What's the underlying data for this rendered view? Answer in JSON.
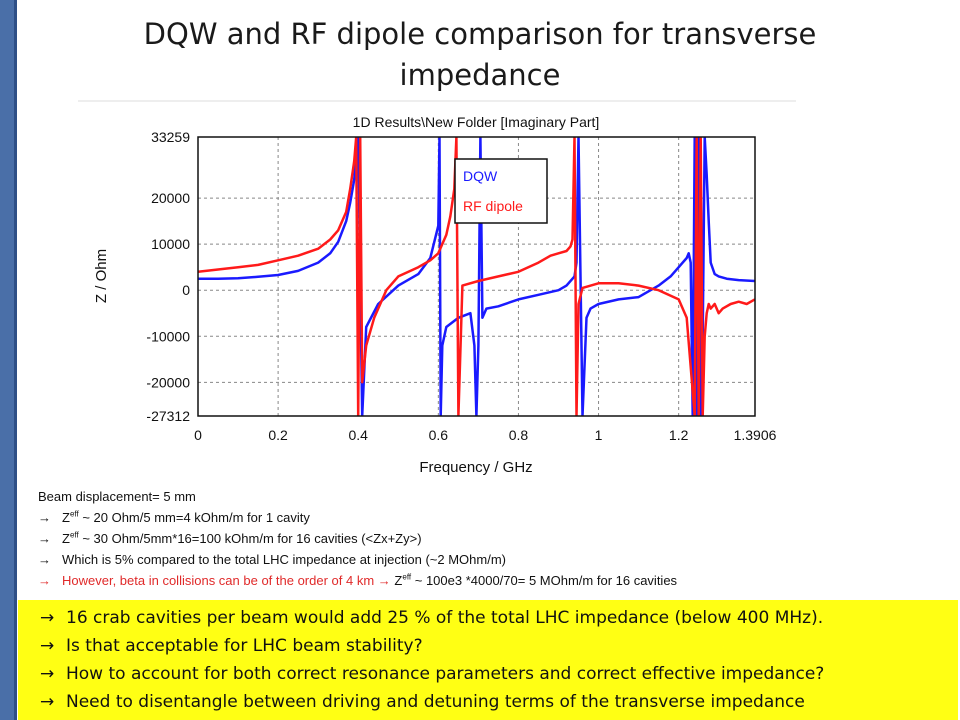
{
  "slide": {
    "title_line1": "DQW and RF dipole comparison for transverse",
    "title_line2": "impedance"
  },
  "chart_data": {
    "type": "line",
    "title": "1D Results\\New Folder [Imaginary Part]",
    "xlabel": "Frequency / GHz",
    "ylabel": "Z / Ohm",
    "xlim": [
      0,
      1.3906
    ],
    "ylim": [
      -27312,
      33259
    ],
    "x_ticks": [
      "0",
      "0.2",
      "0.4",
      "0.6",
      "0.8",
      "1",
      "1.2",
      "1.3906"
    ],
    "x_tick_values": [
      0,
      0.2,
      0.4,
      0.6,
      0.8,
      1,
      1.2,
      1.3906
    ],
    "y_ticks": [
      "33259",
      "20000",
      "10000",
      "0",
      "-10000",
      "-20000",
      "-27312"
    ],
    "y_tick_values": [
      33259,
      20000,
      10000,
      0,
      -10000,
      -20000,
      -27312
    ],
    "grid": true,
    "legend_position": "top-right",
    "series": [
      {
        "name": "DQW",
        "color": "#1a1aff",
        "x": [
          0.0,
          0.05,
          0.1,
          0.15,
          0.2,
          0.25,
          0.3,
          0.33,
          0.35,
          0.37,
          0.38,
          0.39,
          0.395,
          0.4,
          0.41,
          0.42,
          0.45,
          0.5,
          0.55,
          0.58,
          0.6,
          0.603,
          0.606,
          0.61,
          0.62,
          0.65,
          0.68,
          0.69,
          0.695,
          0.7,
          0.705,
          0.71,
          0.72,
          0.75,
          0.8,
          0.85,
          0.9,
          0.92,
          0.94,
          0.945,
          0.95,
          0.96,
          0.97,
          0.98,
          1.0,
          1.05,
          1.1,
          1.15,
          1.18,
          1.2,
          1.21,
          1.22,
          1.225,
          1.23,
          1.235,
          1.24,
          1.245,
          1.25,
          1.255,
          1.26,
          1.265,
          1.27,
          1.275,
          1.28,
          1.29,
          1.3,
          1.32,
          1.35,
          1.39
        ],
        "y": [
          2500,
          2500,
          2600,
          2900,
          3300,
          4200,
          6000,
          8000,
          10500,
          15000,
          19000,
          24000,
          29000,
          33259,
          -27312,
          -8000,
          -3000,
          1000,
          3500,
          7000,
          14000,
          33259,
          -27312,
          -12000,
          -8000,
          -6000,
          -5000,
          -12000,
          -27312,
          -12000,
          33259,
          -6000,
          -4000,
          -3500,
          -2000,
          -1000,
          0,
          1000,
          3000,
          6000,
          33259,
          -27312,
          -6000,
          -4000,
          -3000,
          -2000,
          -1500,
          1000,
          3000,
          5000,
          6000,
          7000,
          8000,
          6000,
          -27312,
          33259,
          -27312,
          33259,
          -27312,
          -10000,
          33259,
          25000,
          15000,
          6000,
          3500,
          3000,
          2500,
          2200,
          2000
        ]
      },
      {
        "name": "RF dipole",
        "color": "#ff1a1a",
        "x": [
          0.0,
          0.05,
          0.1,
          0.15,
          0.2,
          0.25,
          0.3,
          0.33,
          0.35,
          0.37,
          0.38,
          0.39,
          0.395,
          0.4,
          0.405,
          0.41,
          0.42,
          0.44,
          0.47,
          0.5,
          0.55,
          0.58,
          0.6,
          0.62,
          0.63,
          0.64,
          0.645,
          0.65,
          0.66,
          0.7,
          0.75,
          0.8,
          0.85,
          0.88,
          0.9,
          0.92,
          0.93,
          0.935,
          0.94,
          0.945,
          0.95,
          0.96,
          1.0,
          1.05,
          1.1,
          1.15,
          1.2,
          1.22,
          1.24,
          1.245,
          1.25,
          1.255,
          1.26,
          1.265,
          1.27,
          1.275,
          1.28,
          1.29,
          1.3,
          1.31,
          1.33,
          1.35,
          1.37,
          1.39
        ],
        "y": [
          4000,
          4500,
          5000,
          5500,
          6500,
          7500,
          9000,
          11000,
          13000,
          17000,
          22000,
          28000,
          33259,
          -27312,
          33259,
          -20000,
          -12000,
          -6000,
          0,
          3000,
          5000,
          6500,
          8000,
          12000,
          16000,
          22000,
          33259,
          -27312,
          1000,
          2000,
          3000,
          4000,
          6000,
          7500,
          8000,
          8500,
          9500,
          11000,
          33259,
          -27312,
          -3000,
          500,
          1500,
          1500,
          1000,
          0,
          -2000,
          -6000,
          -27312,
          33259,
          -27312,
          33259,
          -27312,
          -10000,
          -5000,
          -3000,
          -4000,
          -3000,
          -5000,
          -4000,
          -3000,
          -2500,
          -3000,
          -2000
        ]
      }
    ]
  },
  "notes": {
    "line1": "Beam displacement= 5 mm",
    "line2_pre": "Z",
    "line2_sup": "eff",
    "line2_post": " ~ 20 Ohm/5 mm=4 kOhm/m for 1 cavity",
    "line3_pre": "Z",
    "line3_sup": "eff",
    "line3_post": " ~ 30 Ohm/5mm*16=100 kOhm/m for 16 cavities (<Zx+Zy>)",
    "line4": "Which is 5% compared to the total LHC impedance at injection (~2 MOhm/m)",
    "line5_a": "However, beta in collisions can be of the order of 4 km",
    "line5_b": "Z",
    "line5_sup": "eff",
    "line5_c": " ~ 100e3 *4000/70= 5 MOhm/m for 16 cavities"
  },
  "summary": {
    "lines": [
      "16 crab cavities per beam would add 25 % of the total LHC impedance (below 400 MHz).",
      "Is that acceptable for LHC beam stability?",
      "How to account for both correct resonance parameters and correct effective impedance?",
      "Need to disentangle between driving and detuning terms of the transverse impedance"
    ]
  },
  "glyphs": {
    "arrow": "→"
  },
  "colors": {
    "dqw": "#1a1aff",
    "rf_dipole": "#ff1a1a",
    "highlight": "#ffff14",
    "side_bar": "#4a6fa8"
  }
}
